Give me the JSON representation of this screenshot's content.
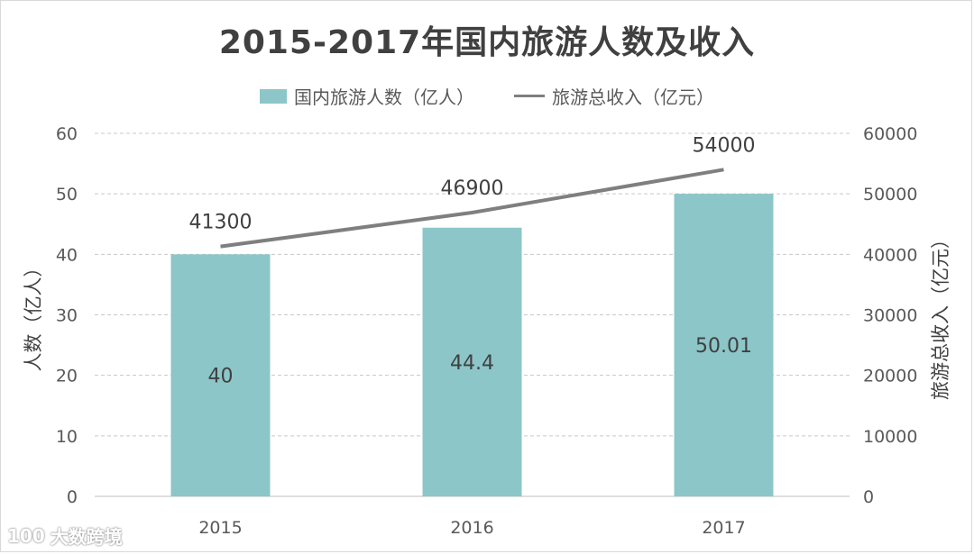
{
  "chart_data": {
    "type": "bar",
    "title": "2015-2017年国内旅游人数及收入",
    "categories": [
      "2015",
      "2016",
      "2017"
    ],
    "series": [
      {
        "name": "国内旅游人数（亿人）",
        "type": "bar",
        "axis": "left",
        "color": "#8cc6c8",
        "values": [
          40,
          44.4,
          50.01
        ],
        "labels": [
          "40",
          "44.4",
          "50.01"
        ]
      },
      {
        "name": "旅游总收入（亿元）",
        "type": "line",
        "axis": "right",
        "color": "#7f7f7f",
        "values": [
          41300,
          46900,
          54000
        ],
        "labels": [
          "41300",
          "46900",
          "54000"
        ]
      }
    ],
    "ylabel": "人数（亿人）",
    "y2label": "旅游总收入（亿元）",
    "ylim": [
      0,
      60
    ],
    "y2lim": [
      0,
      60000
    ],
    "yticks": [
      "0",
      "10",
      "20",
      "30",
      "40",
      "50",
      "60"
    ],
    "y2ticks": [
      "0",
      "10000",
      "20000",
      "30000",
      "40000",
      "50000",
      "60000"
    ],
    "grid": true,
    "legend_position": "top"
  },
  "watermark": {
    "text": "大数跨境",
    "logo_text": "100"
  }
}
